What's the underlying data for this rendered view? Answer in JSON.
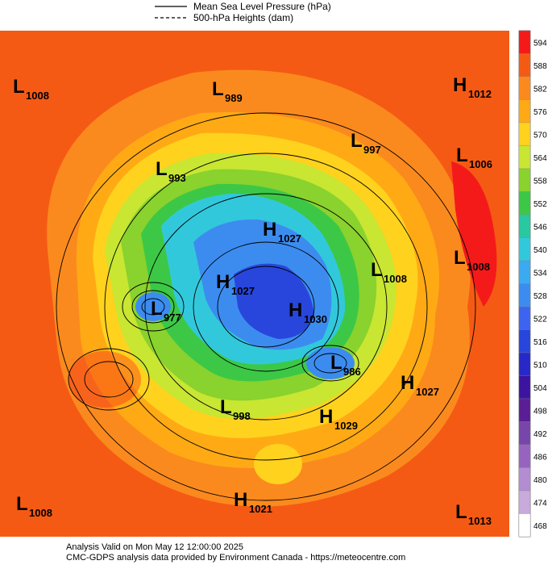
{
  "legend": [
    "Mean Sea Level Pressure (hPa)",
    "500-hPa Heights (dam)"
  ],
  "colorbar": [
    {
      "value": 594,
      "color": "#f41a1a"
    },
    {
      "value": 588,
      "color": "#f55a14"
    },
    {
      "value": 582,
      "color": "#fb8a1e"
    },
    {
      "value": 576,
      "color": "#ffaa14"
    },
    {
      "value": 570,
      "color": "#ffd21e"
    },
    {
      "value": 564,
      "color": "#c8e632"
    },
    {
      "value": 558,
      "color": "#8ad22d"
    },
    {
      "value": 552,
      "color": "#3cc846"
    },
    {
      "value": 546,
      "color": "#28c8a0"
    },
    {
      "value": 540,
      "color": "#32c8dc"
    },
    {
      "value": 534,
      "color": "#3caaf0"
    },
    {
      "value": 528,
      "color": "#3c8cf0"
    },
    {
      "value": 522,
      "color": "#3c64f0"
    },
    {
      "value": 516,
      "color": "#2846dc"
    },
    {
      "value": 510,
      "color": "#2828c8"
    },
    {
      "value": 504,
      "color": "#3c14a0"
    },
    {
      "value": 498,
      "color": "#5a1e96"
    },
    {
      "value": 492,
      "color": "#7846aa"
    },
    {
      "value": 486,
      "color": "#9664be"
    },
    {
      "value": 480,
      "color": "#b48cd2"
    },
    {
      "value": 474,
      "color": "#c8aadc"
    },
    {
      "value": 468,
      "color": "#ffffff"
    }
  ],
  "centers": [
    {
      "type": "L",
      "value": 1008
    },
    {
      "type": "L",
      "value": 989
    },
    {
      "type": "H",
      "value": 1012
    },
    {
      "type": "L",
      "value": 997
    },
    {
      "type": "L",
      "value": 1006
    },
    {
      "type": "L",
      "value": 993
    },
    {
      "type": "H",
      "value": 1027
    },
    {
      "type": "L",
      "value": 1008
    },
    {
      "type": "L",
      "value": 1008
    },
    {
      "type": "H",
      "value": 1027
    },
    {
      "type": "L",
      "value": 977
    },
    {
      "type": "H",
      "value": 1030
    },
    {
      "type": "L",
      "value": 986
    },
    {
      "type": "H",
      "value": 1027
    },
    {
      "type": "L",
      "value": 998
    },
    {
      "type": "H",
      "value": 1029
    },
    {
      "type": "L",
      "value": 1008
    },
    {
      "type": "H",
      "value": 1021
    },
    {
      "type": "L",
      "value": 1013
    }
  ],
  "footer": [
    "Analysis Valid on Mon May 12 12:00:00 2025",
    "CMC-GDPS analysis data provided by Environment Canada - https://meteocentre.com"
  ]
}
